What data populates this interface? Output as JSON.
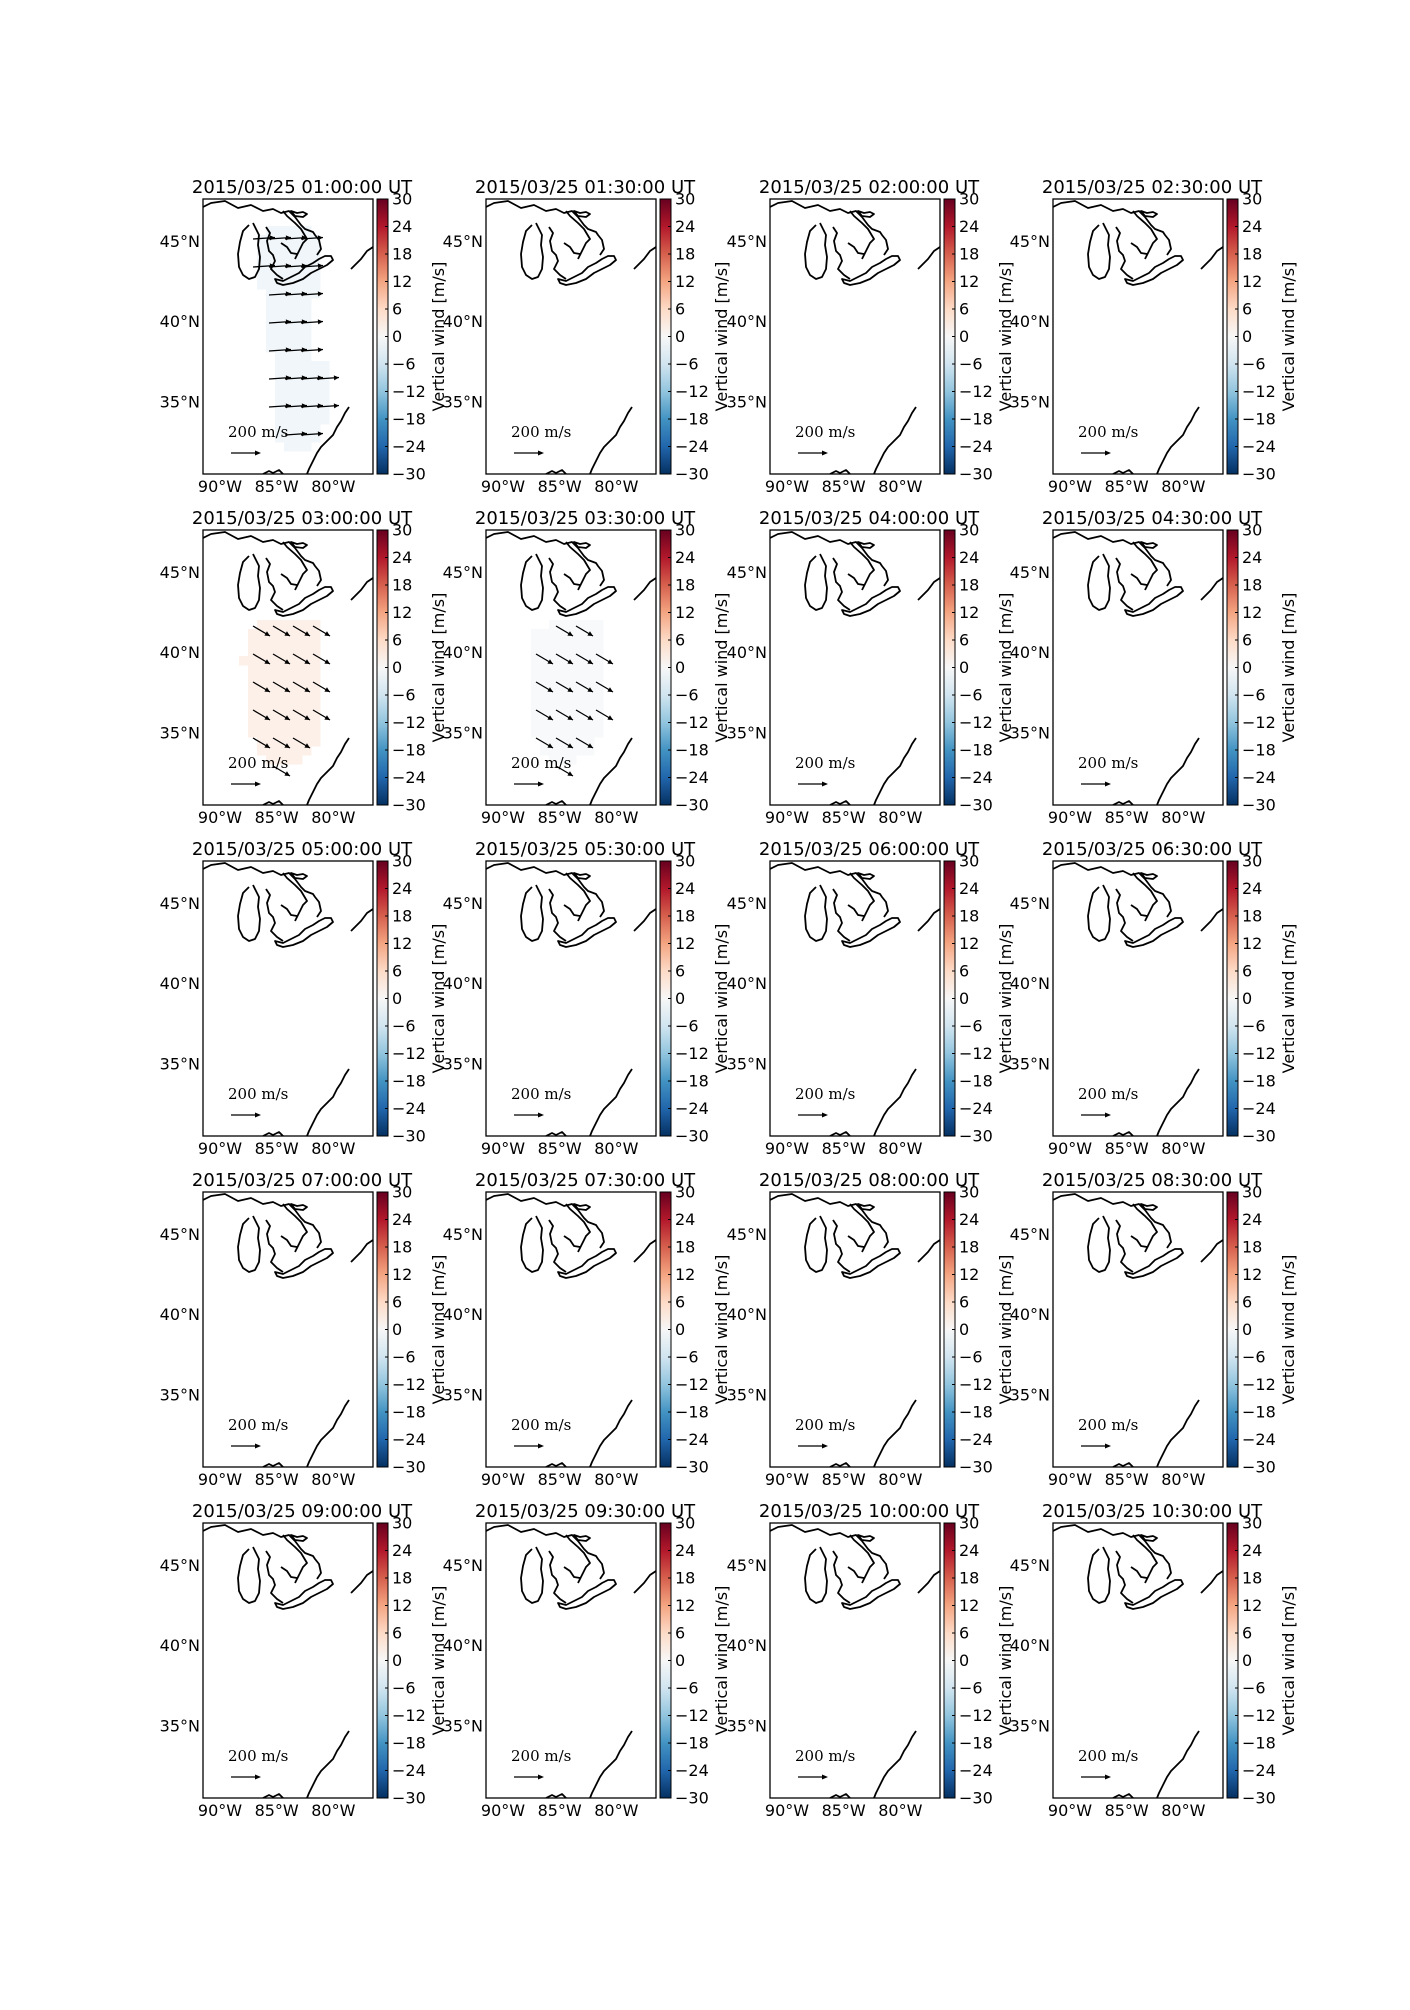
{
  "figure": {
    "colorbar_label": "Vertical wind [m/s]",
    "colorbar_ticks": [
      "30",
      "24",
      "18",
      "12",
      "6",
      "0",
      "−6",
      "−12",
      "−18",
      "−24",
      "−30"
    ],
    "colorbar_range": [
      -30,
      30
    ],
    "colormap": "RdBu_r",
    "lat_labels": [
      "45°N",
      "40°N",
      "35°N"
    ],
    "lon_labels": [
      "90°W",
      "85°W",
      "80°W"
    ],
    "reference_vector": "200 m/s",
    "reference_vector_value": 200,
    "reference_vector_unit_num": "m",
    "reference_vector_unit_den": "s"
  },
  "panels": [
    {
      "title": "2015/03/25 01:00:00 UT",
      "vertical_wind": -3,
      "region": "region-a",
      "arrow_direction": "east"
    },
    {
      "title": "2015/03/25 01:30:00 UT",
      "vertical_wind": null
    },
    {
      "title": "2015/03/25 02:00:00 UT",
      "vertical_wind": null
    },
    {
      "title": "2015/03/25 02:30:00 UT",
      "vertical_wind": null
    },
    {
      "title": "2015/03/25 03:00:00 UT",
      "vertical_wind": 4,
      "region": "region-b",
      "arrow_direction": "southeast"
    },
    {
      "title": "2015/03/25 03:30:00 UT",
      "vertical_wind": -1,
      "region": "region-c",
      "arrow_direction": "southeast"
    },
    {
      "title": "2015/03/25 04:00:00 UT",
      "vertical_wind": null
    },
    {
      "title": "2015/03/25 04:30:00 UT",
      "vertical_wind": null
    },
    {
      "title": "2015/03/25 05:00:00 UT",
      "vertical_wind": null
    },
    {
      "title": "2015/03/25 05:30:00 UT",
      "vertical_wind": null
    },
    {
      "title": "2015/03/25 06:00:00 UT",
      "vertical_wind": null
    },
    {
      "title": "2015/03/25 06:30:00 UT",
      "vertical_wind": null
    },
    {
      "title": "2015/03/25 07:00:00 UT",
      "vertical_wind": null
    },
    {
      "title": "2015/03/25 07:30:00 UT",
      "vertical_wind": null
    },
    {
      "title": "2015/03/25 08:00:00 UT",
      "vertical_wind": null
    },
    {
      "title": "2015/03/25 08:30:00 UT",
      "vertical_wind": null
    },
    {
      "title": "2015/03/25 09:00:00 UT",
      "vertical_wind": null
    },
    {
      "title": "2015/03/25 09:30:00 UT",
      "vertical_wind": null
    },
    {
      "title": "2015/03/25 10:00:00 UT",
      "vertical_wind": null
    },
    {
      "title": "2015/03/25 10:30:00 UT",
      "vertical_wind": null
    }
  ],
  "colors": {
    "cbar_stops": [
      "#67001f",
      "#b2182b",
      "#d6604d",
      "#f4a582",
      "#fddbc7",
      "#f7f7f7",
      "#d1e5f0",
      "#92c5de",
      "#4393c3",
      "#2166ac",
      "#053061"
    ]
  }
}
